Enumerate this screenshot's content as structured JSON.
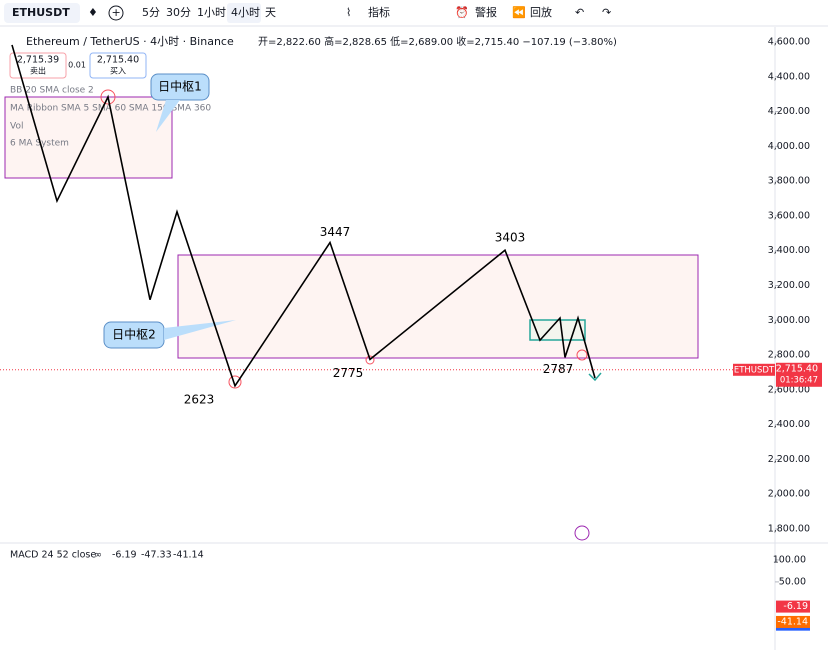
{
  "toolbar": {
    "symbol": "ETHUSDT",
    "intervals": [
      "5分",
      "30分",
      "1小时",
      "4小时",
      "天"
    ],
    "indicators": "指标",
    "alert": "警报",
    "replay": "回放"
  },
  "legend": {
    "title": "Ethereum / TetherUS · 4小时 · Binance",
    "ohlc": "开=2,822.60 高=2,828.65 低=2,689.00 收=2,715.40 −107.19 (−3.80%)",
    "sell_price": "2,715.39",
    "sell": "卖出",
    "spread": "0.01",
    "buy_price": "2,715.40",
    "buy": "买入",
    "studies": [
      "BB 20 SMA close 2",
      "MA Ribbon SMA 5 SMA 60 SMA 150 SMA 360",
      "Vol",
      "6 MA System"
    ]
  },
  "chart": {
    "ylim": [
      1800,
      4600
    ],
    "yticks": [
      {
        "value": 4600,
        "label": "4,600.00"
      },
      {
        "value": 4400,
        "label": "4,400.00"
      },
      {
        "value": 4200,
        "label": "4,200.00"
      },
      {
        "value": 4000,
        "label": "4,000.00"
      },
      {
        "value": 3800,
        "label": "3,800.00"
      },
      {
        "value": 3600,
        "label": "3,600.00"
      },
      {
        "value": 3400,
        "label": "3,400.00"
      },
      {
        "value": 3200,
        "label": "3,200.00"
      },
      {
        "value": 3000,
        "label": "3,000.00"
      },
      {
        "value": 2800,
        "label": "2,800.00"
      },
      {
        "value": 2600,
        "label": "2,600.00"
      },
      {
        "value": 2400,
        "label": "2,400.00"
      },
      {
        "value": 2200,
        "label": "2,200.00"
      },
      {
        "value": 2000,
        "label": "2,000.00"
      },
      {
        "value": 1800,
        "label": "1,800.00"
      }
    ],
    "zigzag": [
      4583,
      3686,
      4284,
      3118,
      3624,
      2623,
      3447,
      2775,
      3403,
      2886,
      3013,
      2787,
      3013,
      2668
    ],
    "annotations": [
      "日中枢1",
      "日中枢2"
    ],
    "last": {
      "value": 2715.4,
      "symbol": "ETHUSDT",
      "label": "2,715.40",
      "countdown": "01:36:47"
    }
  },
  "macd": {
    "title": "MACD 24 52 close",
    "ylim": [
      -105,
      134
    ],
    "yticks": [
      {
        "value": 100,
        "label": "100.00"
      },
      {
        "value": 50,
        "label": "50.00"
      }
    ],
    "values": [
      -6.19,
      -47.33,
      -41.14
    ]
  }
}
